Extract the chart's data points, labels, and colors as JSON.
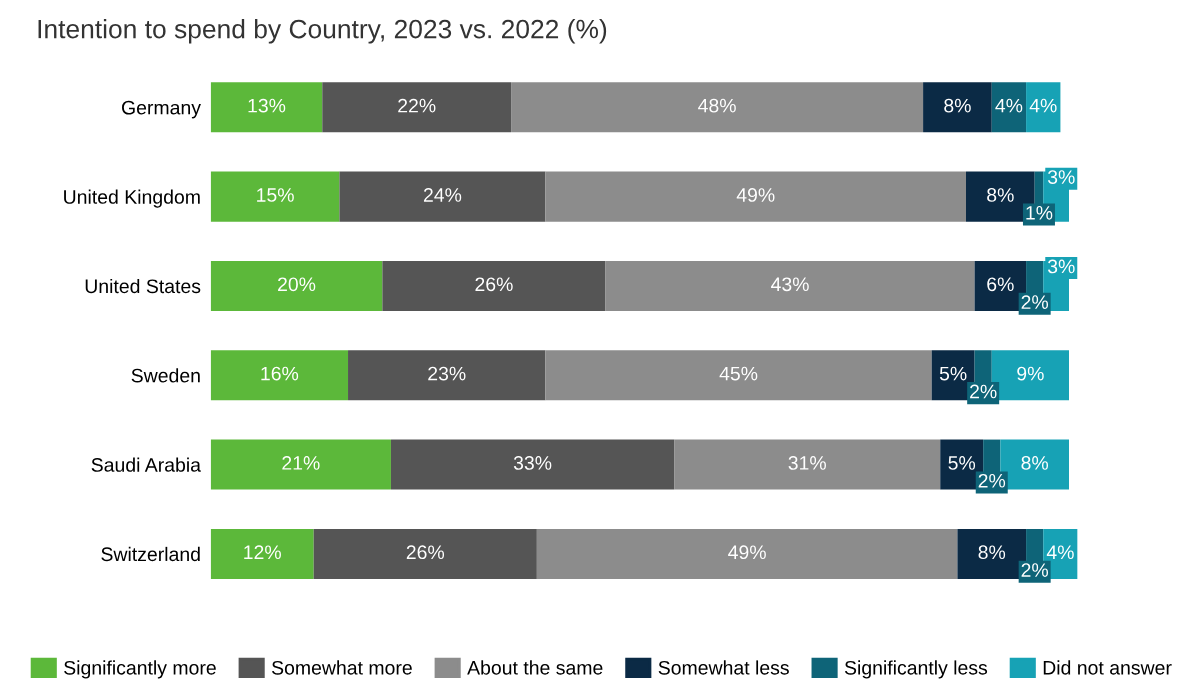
{
  "chart_data": {
    "type": "bar",
    "orientation": "horizontal",
    "stacked": true,
    "title": "Intention to spend by Country, 2023 vs. 2022 (%)",
    "categories": [
      "Germany",
      "United Kingdom",
      "United States",
      "Sweden",
      "Saudi Arabia",
      "Switzerland"
    ],
    "series": [
      {
        "name": "Significantly more",
        "color": "#5cb83a",
        "values": [
          13,
          15,
          20,
          16,
          21,
          12
        ],
        "value_labels": [
          "13%",
          "15%",
          "20%",
          "16%",
          "21%",
          "12%"
        ]
      },
      {
        "name": "Somewhat more",
        "color": "#555555",
        "values": [
          22,
          24,
          26,
          23,
          33,
          26
        ],
        "value_labels": [
          "22%",
          "24%",
          "26%",
          "23%",
          "33%",
          "26%"
        ]
      },
      {
        "name": "About the same",
        "color": "#8c8c8c",
        "values": [
          48,
          49,
          43,
          45,
          31,
          49
        ],
        "value_labels": [
          "48%",
          "49%",
          "43%",
          "45%",
          "31%",
          "49%"
        ]
      },
      {
        "name": "Somewhat less",
        "color": "#0b2a45",
        "values": [
          8,
          8,
          6,
          5,
          5,
          8
        ],
        "value_labels": [
          "8%",
          "8%",
          "6%",
          "5%",
          "5%",
          "8%"
        ]
      },
      {
        "name": "Significantly less",
        "color": "#0e6478",
        "values": [
          4,
          1,
          2,
          2,
          2,
          2
        ],
        "value_labels": [
          "4%",
          "1%",
          "2%",
          "2%",
          "2%",
          "2%"
        ]
      },
      {
        "name": "Did not answer",
        "color": "#17a2b5",
        "values": [
          4,
          3,
          3,
          9,
          8,
          4
        ],
        "value_labels": [
          "4%",
          "3%",
          "3%",
          "9%",
          "8%",
          "4%"
        ]
      }
    ],
    "legend": "bottom",
    "grid": false,
    "tick_labels": "y"
  }
}
